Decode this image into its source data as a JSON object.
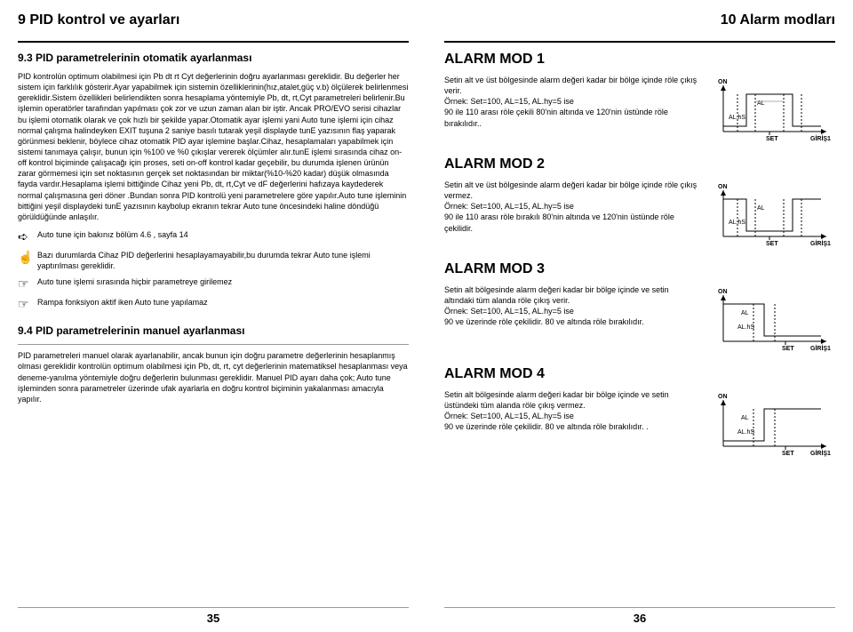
{
  "left": {
    "chapter": "9 PID kontrol ve ayarları",
    "section93": "9.3 PID parametrelerinin otomatik ayarlanması",
    "body93": "PID kontrolün optimum olabilmesi için Pb dt rt Cyt değerlerinin doğru ayarlanması gereklidir. Bu değerler her sistem için farklılık gösterir.Ayar yapabilmek için sistemin özelliklerinin(hız,atalet,güç v.b) ölçülerek belirlenmesi gereklidir.Sistem özellikleri belirlendikten sonra hesaplama yöntemiyle Pb, dt, rt,Cyt parametreleri belirlenir.Bu işlemin operatörler tarafından yapılması çok zor ve uzun zaman alan bir iştir. Ancak PRO/EVO serisi cihazlar bu işlemi otomatik olarak ve çok hızlı bir şekilde yapar.Otomatik ayar işlemi yani Auto tune işlemi için cihaz normal çalışma halindeyken EXIT tuşuna 2 saniye basılı tutarak yeşil displayde tunE yazısının flaş yaparak görünmesi beklenir, böylece cihaz otomatik PID ayar işlemine başlar.Cihaz, hesaplamaları yapabilmek için sistemi tanımaya çalışır, bunun için %100 ve %0 çıkışlar vererek ölçümler alır.tunE işlemi sırasında cihaz on-off kontrol biçiminde çalışacağı için proses, seti on-off kontrol kadar geçebilir, bu durumda işlenen ürünün zarar görmemesi için set noktasının gerçek set noktasından bir miktar(%10-%20 kadar) düşük olmasında fayda vardır.Hesaplama işlemi bittiğinde Cihaz yeni Pb, dt, rt,Cyt ve dF değerlerini hafızaya kaydederek normal çalışmasına geri döner .Bundan sonra PID kontrolü yeni parametrelere göre yapılır.Auto tune işleminin bittiğini yeşil displaydeki tunE yazısının kaybolup ekranın tekrar Auto tune öncesindeki haline döndüğü görüldüğünde anlaşılır.",
    "note1": "Auto tune için bakınız bölüm 4.6 , sayfa 14",
    "note2": "Bazı durumlarda Cihaz PID değerlerini hesaplayamayabilir,bu durumda tekrar Auto tune işlemi yaptırılması gereklidir.",
    "note3": "Auto tune işlemi sırasında hiçbir parametreye girilemez",
    "note4": "Rampa fonksiyon aktif iken Auto tune yapılamaz",
    "section94": "9.4 PID parametrelerinin manuel ayarlanması",
    "body94": "PID parametreleri manuel olarak ayarlanabilir, ancak bunun için doğru parametre değerlerinin hesaplanmış olması gereklidir kontrolün optimum olabilmesi için Pb, dt, rt, cyt değerlerinin matematiksel hesaplanması veya deneme-yanılma yöntemiyle doğru değerlerin bulunması gereklidir. Manuel PID ayarı daha çok; Auto tune işleminden sonra parametreler üzerinde ufak ayarlarla en doğru kontrol biçiminin yakalanması amacıyla yapılır.",
    "pageNum": "35"
  },
  "right": {
    "chapter": "10 Alarm modları",
    "labels": {
      "on": "ON",
      "al": "AL",
      "alhs": "AL.hS",
      "set": "SET",
      "giris": "GİRİŞ1"
    },
    "alarm1": {
      "title": "ALARM MOD 1",
      "text": "Setin alt ve üst bölgesinde alarm değeri kadar bir bölge içinde röle çıkış verir.\nÖrnek: Set=100, AL=15, AL.hy=5 ise\n90 ile 110 arası röle çekili 80'nin altında ve 120'nin üstünde röle bırakılıdır.."
    },
    "alarm2": {
      "title": "ALARM MOD 2",
      "text": "Setin alt ve üst bölgesinde alarm değeri kadar bir bölge içinde röle çıkış vermez.\nÖrnek: Set=100, AL=15, AL.hy=5 ise\n90 ile 110 arası röle bırakılı 80'nin altında ve 120'nin üstünde röle çekilidir."
    },
    "alarm3": {
      "title": "ALARM MOD 3",
      "text": "Setin alt bölgesinde alarm değeri kadar bir bölge içinde ve setin altındaki tüm alanda röle çıkış verir.\nÖrnek: Set=100, AL=15, AL.hy=5 ise\n90 ve üzerinde röle çekilidir. 80 ve altında röle bırakılıdır."
    },
    "alarm4": {
      "title": "ALARM MOD 4",
      "text": "Setin alt bölgesinde alarm değeri kadar bir bölge içinde ve setin üstündeki tüm alanda röle çıkış vermez.\nÖrnek: Set=100, AL=15, AL.hy=5 ise\n90 ve üzerinde röle çekilidir. 80 ve altında röle bırakılıdır. ."
    },
    "pageNum": "36"
  }
}
